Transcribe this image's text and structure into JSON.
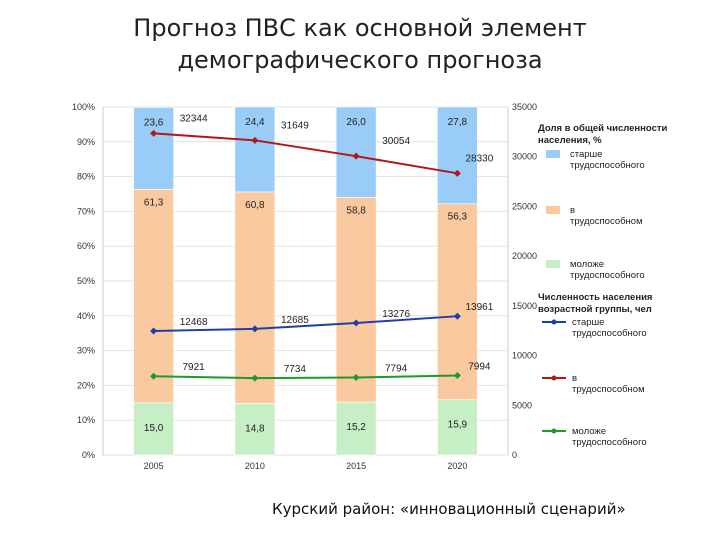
{
  "title_line1": "Прогноз ПВС как основной элемент",
  "title_line2": "демографического прогноза",
  "caption": "Курский район: «инновационный сценарий»",
  "chart_data": {
    "type": "bar",
    "stacked": true,
    "categories": [
      "2005",
      "2010",
      "2015",
      "2020"
    ],
    "left_axis_ticks": [
      "0%",
      "10%",
      "20%",
      "30%",
      "40%",
      "50%",
      "60%",
      "70%",
      "80%",
      "90%",
      "100%"
    ],
    "right_axis_ticks": [
      "0",
      "5000",
      "10000",
      "15000",
      "20000",
      "25000",
      "30000",
      "35000"
    ],
    "ylim_left": [
      0,
      100
    ],
    "ylim_right": [
      0,
      35000
    ],
    "bar_series": [
      {
        "name": "моложе трудоспособного",
        "color": "#c6efc6",
        "values": [
          15.0,
          14.8,
          15.2,
          15.9
        ],
        "labels": [
          "15,0",
          "14,8",
          "15,2",
          "15,9"
        ]
      },
      {
        "name": "в трудоспособном",
        "color": "#fac9a0",
        "values": [
          61.3,
          60.8,
          58.8,
          56.3
        ],
        "labels": [
          "61,3",
          "60,8",
          "58,8",
          "56,3"
        ]
      },
      {
        "name": "старше трудоспособного",
        "color": "#99ccf7",
        "values": [
          23.6,
          24.4,
          26.0,
          27.8
        ],
        "labels": [
          "23,6",
          "24,4",
          "26,0",
          "27,8"
        ]
      }
    ],
    "line_series": [
      {
        "name": "старше трудоспособного",
        "color": "#1f3fa8",
        "values": [
          12468,
          12685,
          13276,
          13961
        ],
        "labels": [
          "12468",
          "12685",
          "13276",
          "13961"
        ]
      },
      {
        "name": "в трудоспособном",
        "color": "#b01818",
        "values": [
          32344,
          31649,
          30054,
          28330
        ],
        "labels": [
          "32344",
          "31649",
          "30054",
          "28330"
        ]
      },
      {
        "name": "моложе трудоспособного",
        "color": "#1c9a2a",
        "values": [
          7921,
          7734,
          7794,
          7994
        ],
        "labels": [
          "7921",
          "7734",
          "7794",
          "7994"
        ]
      }
    ],
    "legend": {
      "placement": "right",
      "group1_title": "Доля в общей численности населения, %",
      "group1_items": [
        "старше трудоспособного",
        "в трудоспособном",
        "моложе трудоспособного"
      ],
      "group2_title": "Численность населения возрастной группы, чел",
      "group2_items": [
        "старше трудоспособного",
        "в трудоспособном",
        "моложе трудоспособного"
      ]
    }
  }
}
